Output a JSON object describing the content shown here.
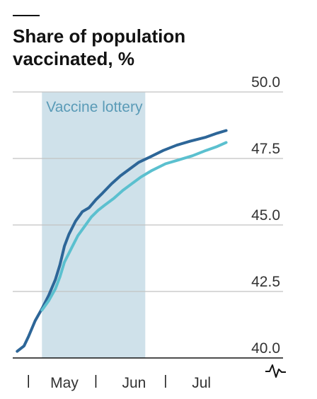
{
  "chart_data": {
    "type": "line",
    "title_lines": [
      "Share of population",
      "vaccinated, %"
    ],
    "xlabel": "",
    "ylabel": "",
    "ylim": [
      40.0,
      50.0
    ],
    "yticks": [
      {
        "value": 40.0,
        "label": "40.0"
      },
      {
        "value": 42.5,
        "label": "42.5"
      },
      {
        "value": 45.0,
        "label": "45.0"
      },
      {
        "value": 47.5,
        "label": "47.5"
      },
      {
        "value": 50.0,
        "label": "50.0"
      }
    ],
    "xlim": [
      "2021-04-08",
      "2021-07-20"
    ],
    "xticks": [
      {
        "date": "2021-04-15",
        "label": ""
      },
      {
        "date": "2021-05-01",
        "label": "May"
      },
      {
        "date": "2021-05-15",
        "label": ""
      },
      {
        "date": "2021-06-01",
        "label": "Jun"
      },
      {
        "date": "2021-06-15",
        "label": ""
      },
      {
        "date": "2021-07-01",
        "label": "Jul"
      }
    ],
    "annotation": {
      "label": "Vaccine lottery",
      "start": "2021-04-21",
      "end": "2021-06-06",
      "color": "#cfe1ea",
      "label_color": "#5a9bb7"
    },
    "grid": true,
    "axis_break_symbol": true,
    "series": [
      {
        "name": "",
        "color": "#2d6698",
        "points": [
          [
            "2021-04-10",
            40.25
          ],
          [
            "2021-04-13",
            40.45
          ],
          [
            "2021-04-15",
            40.8
          ],
          [
            "2021-04-18",
            41.4
          ],
          [
            "2021-04-21",
            41.85
          ],
          [
            "2021-04-24",
            42.35
          ],
          [
            "2021-04-27",
            42.95
          ],
          [
            "2021-04-29",
            43.5
          ],
          [
            "2021-05-01",
            44.2
          ],
          [
            "2021-05-03",
            44.65
          ],
          [
            "2021-05-06",
            45.15
          ],
          [
            "2021-05-09",
            45.5
          ],
          [
            "2021-05-12",
            45.65
          ],
          [
            "2021-05-15",
            45.95
          ],
          [
            "2021-05-18",
            46.2
          ],
          [
            "2021-05-22",
            46.55
          ],
          [
            "2021-05-26",
            46.85
          ],
          [
            "2021-05-30",
            47.1
          ],
          [
            "2021-06-03",
            47.35
          ],
          [
            "2021-06-08",
            47.55
          ],
          [
            "2021-06-14",
            47.8
          ],
          [
            "2021-06-20",
            48.0
          ],
          [
            "2021-06-26",
            48.15
          ],
          [
            "2021-07-03",
            48.3
          ],
          [
            "2021-07-08",
            48.45
          ],
          [
            "2021-07-12",
            48.55
          ]
        ]
      },
      {
        "name": "",
        "color": "#5bc0cf",
        "points": [
          [
            "2021-04-21",
            41.8
          ],
          [
            "2021-04-24",
            42.15
          ],
          [
            "2021-04-27",
            42.6
          ],
          [
            "2021-04-29",
            43.05
          ],
          [
            "2021-05-01",
            43.6
          ],
          [
            "2021-05-04",
            44.1
          ],
          [
            "2021-05-07",
            44.6
          ],
          [
            "2021-05-10",
            44.95
          ],
          [
            "2021-05-13",
            45.3
          ],
          [
            "2021-05-16",
            45.55
          ],
          [
            "2021-05-19",
            45.75
          ],
          [
            "2021-05-23",
            46.0
          ],
          [
            "2021-05-27",
            46.3
          ],
          [
            "2021-05-31",
            46.55
          ],
          [
            "2021-06-04",
            46.8
          ],
          [
            "2021-06-09",
            47.05
          ],
          [
            "2021-06-15",
            47.3
          ],
          [
            "2021-06-21",
            47.45
          ],
          [
            "2021-06-27",
            47.6
          ],
          [
            "2021-07-03",
            47.8
          ],
          [
            "2021-07-08",
            47.95
          ],
          [
            "2021-07-12",
            48.1
          ]
        ]
      }
    ]
  }
}
